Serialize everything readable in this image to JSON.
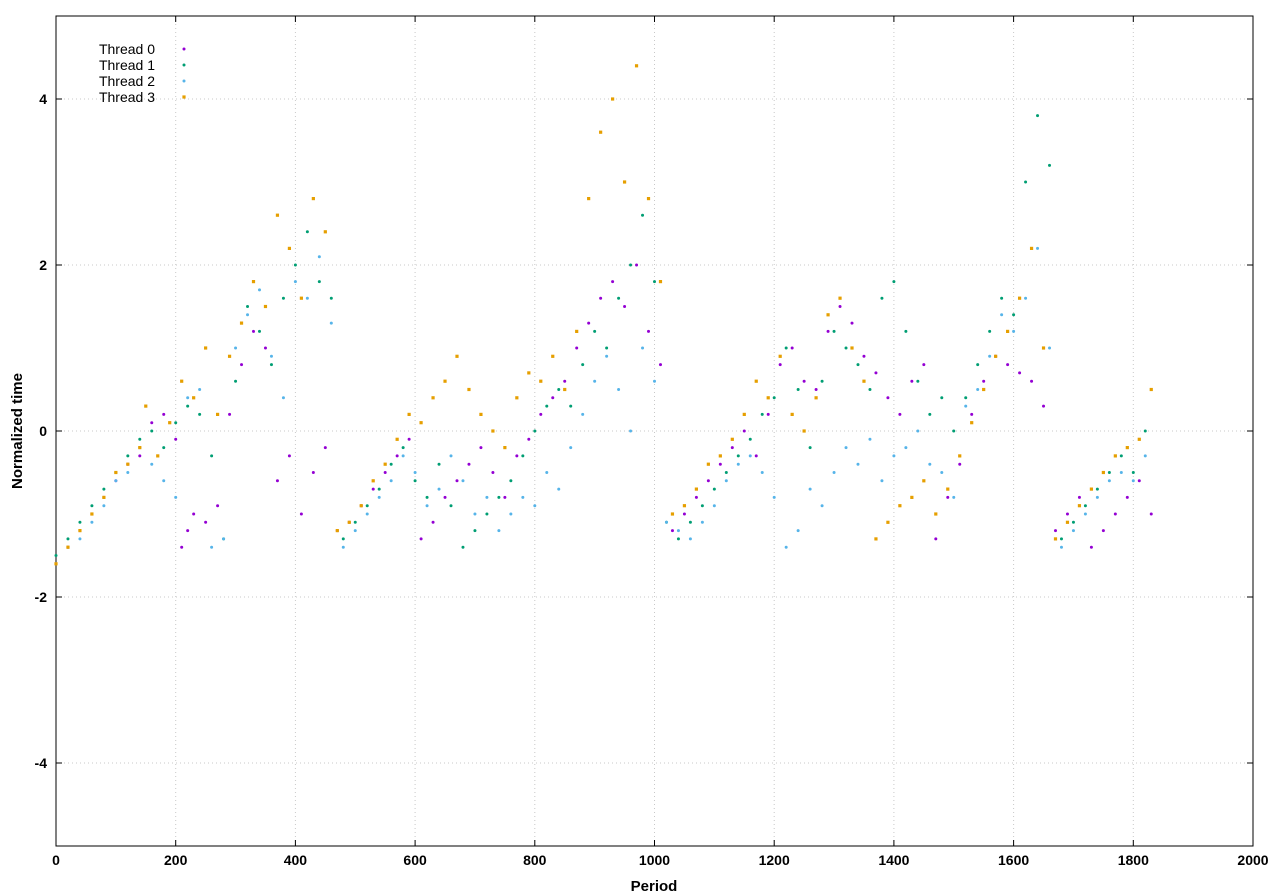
{
  "chart_data": {
    "type": "scatter",
    "title": "",
    "xlabel": "Period",
    "ylabel": "Normalized time",
    "xlim": [
      0,
      2000
    ],
    "ylim": [
      -5,
      5
    ],
    "xticks": [
      0,
      200,
      400,
      600,
      800,
      1000,
      1200,
      1400,
      1600,
      1800,
      2000
    ],
    "yticks": [
      -4,
      -2,
      0,
      2,
      4
    ],
    "grid": true,
    "legend_position": "top-left",
    "series": [
      {
        "name": "Thread 0",
        "color": "#9400d3",
        "marker": "dot",
        "x": [
          0,
          20,
          40,
          60,
          80,
          100,
          120,
          140,
          160,
          180,
          200,
          210,
          220,
          230,
          250,
          270,
          290,
          310,
          330,
          350,
          370,
          390,
          410,
          430,
          450,
          470,
          490,
          510,
          530,
          550,
          570,
          590,
          610,
          630,
          650,
          670,
          690,
          710,
          730,
          750,
          770,
          790,
          810,
          830,
          850,
          870,
          890,
          910,
          930,
          950,
          970,
          990,
          1010,
          1030,
          1050,
          1070,
          1090,
          1110,
          1130,
          1150,
          1170,
          1190,
          1210,
          1230,
          1250,
          1270,
          1290,
          1310,
          1330,
          1350,
          1370,
          1390,
          1410,
          1430,
          1450,
          1470,
          1490,
          1510,
          1530,
          1550,
          1570,
          1590,
          1610,
          1630,
          1650,
          1670,
          1690,
          1710,
          1730,
          1750,
          1770,
          1790,
          1810,
          1830
        ],
        "y": [
          -1.6,
          -1.4,
          -1.2,
          -1.0,
          -0.8,
          -0.6,
          -0.4,
          -0.3,
          0.1,
          0.2,
          -0.1,
          -1.4,
          -1.2,
          -1.0,
          -1.1,
          -0.9,
          0.2,
          0.8,
          1.2,
          1.0,
          -0.6,
          -0.3,
          -1.0,
          -0.5,
          -0.2,
          -1.2,
          -1.1,
          -0.9,
          -0.7,
          -0.5,
          -0.3,
          -0.1,
          -1.3,
          -1.1,
          -0.8,
          -0.6,
          -0.4,
          -0.2,
          -0.5,
          -0.8,
          -0.3,
          -0.1,
          0.2,
          0.4,
          0.6,
          1.0,
          1.3,
          1.6,
          1.8,
          1.5,
          2.0,
          1.2,
          0.8,
          -1.2,
          -1.0,
          -0.8,
          -0.6,
          -0.4,
          -0.2,
          0.0,
          -0.3,
          0.2,
          0.8,
          1.0,
          0.6,
          0.5,
          1.2,
          1.5,
          1.3,
          0.9,
          0.7,
          0.4,
          0.2,
          0.6,
          0.8,
          -1.3,
          -0.8,
          -0.4,
          0.2,
          0.6,
          0.9,
          0.8,
          0.7,
          0.6,
          0.3,
          -1.2,
          -1.0,
          -0.8,
          -1.4,
          -1.2,
          -1.0,
          -0.8,
          -0.6,
          -1.0
        ]
      },
      {
        "name": "Thread 1",
        "color": "#009e73",
        "marker": "dot",
        "x": [
          0,
          20,
          40,
          60,
          80,
          100,
          120,
          140,
          160,
          180,
          200,
          220,
          240,
          260,
          280,
          300,
          320,
          340,
          360,
          380,
          400,
          420,
          440,
          460,
          480,
          500,
          520,
          540,
          560,
          580,
          600,
          620,
          640,
          660,
          680,
          700,
          720,
          740,
          760,
          780,
          800,
          820,
          840,
          860,
          880,
          900,
          920,
          940,
          960,
          980,
          1000,
          1020,
          1040,
          1060,
          1080,
          1100,
          1120,
          1140,
          1160,
          1180,
          1200,
          1220,
          1240,
          1260,
          1280,
          1300,
          1320,
          1340,
          1360,
          1380,
          1400,
          1420,
          1440,
          1460,
          1480,
          1500,
          1520,
          1540,
          1560,
          1580,
          1600,
          1620,
          1640,
          1660,
          1680,
          1700,
          1720,
          1740,
          1760,
          1780,
          1800,
          1820
        ],
        "y": [
          -1.5,
          -1.3,
          -1.1,
          -0.9,
          -0.7,
          -0.5,
          -0.3,
          -0.1,
          0.0,
          -0.2,
          0.1,
          0.3,
          0.2,
          -0.3,
          -1.3,
          0.6,
          1.5,
          1.2,
          0.8,
          1.6,
          2.0,
          2.4,
          1.8,
          1.6,
          -1.3,
          -1.1,
          -0.9,
          -0.7,
          -0.4,
          -0.2,
          -0.6,
          -0.8,
          -0.4,
          -0.9,
          -1.4,
          -1.2,
          -1.0,
          -0.8,
          -0.6,
          -0.3,
          0.0,
          0.3,
          0.5,
          0.3,
          0.8,
          1.2,
          1.0,
          1.6,
          2.0,
          2.6,
          1.8,
          -1.1,
          -1.3,
          -1.1,
          -0.9,
          -0.7,
          -0.5,
          -0.3,
          -0.1,
          0.2,
          0.4,
          1.0,
          0.5,
          -0.2,
          0.6,
          1.2,
          1.0,
          0.8,
          0.5,
          1.6,
          1.8,
          1.2,
          0.6,
          0.2,
          0.4,
          0.0,
          0.4,
          0.8,
          1.2,
          1.6,
          1.4,
          3.0,
          3.8,
          3.2,
          -1.3,
          -1.1,
          -0.9,
          -0.7,
          -0.5,
          -0.3,
          -0.5,
          0.0
        ]
      },
      {
        "name": "Thread 2",
        "color": "#56b4e9",
        "marker": "dot",
        "x": [
          0,
          20,
          40,
          60,
          80,
          100,
          120,
          140,
          160,
          180,
          200,
          220,
          240,
          260,
          280,
          300,
          320,
          340,
          360,
          380,
          400,
          420,
          440,
          460,
          480,
          500,
          520,
          540,
          560,
          580,
          600,
          620,
          640,
          660,
          680,
          700,
          720,
          740,
          760,
          780,
          800,
          820,
          840,
          860,
          880,
          900,
          920,
          940,
          960,
          980,
          1000,
          1020,
          1040,
          1060,
          1080,
          1100,
          1120,
          1140,
          1160,
          1180,
          1200,
          1220,
          1240,
          1260,
          1280,
          1300,
          1320,
          1340,
          1360,
          1380,
          1400,
          1420,
          1440,
          1460,
          1480,
          1500,
          1520,
          1540,
          1560,
          1580,
          1600,
          1620,
          1640,
          1660,
          1680,
          1700,
          1720,
          1740,
          1760,
          1780,
          1800,
          1820
        ],
        "y": [
          -1.6,
          -1.4,
          -1.3,
          -1.1,
          -0.9,
          -0.6,
          -0.5,
          -0.2,
          -0.4,
          -0.6,
          -0.8,
          0.4,
          0.5,
          -1.4,
          -1.3,
          1.0,
          1.4,
          1.7,
          0.9,
          0.4,
          1.8,
          1.6,
          2.1,
          1.3,
          -1.4,
          -1.2,
          -1.0,
          -0.8,
          -0.6,
          -0.3,
          -0.5,
          -0.9,
          -0.7,
          -0.3,
          -0.6,
          -1.0,
          -0.8,
          -1.2,
          -1.0,
          -0.8,
          -0.9,
          -0.5,
          -0.7,
          -0.2,
          0.2,
          0.6,
          0.9,
          0.5,
          0.0,
          1.0,
          0.6,
          -1.1,
          -1.2,
          -1.3,
          -1.1,
          -0.9,
          -0.6,
          -0.4,
          -0.3,
          -0.5,
          -0.8,
          -1.4,
          -1.2,
          -0.7,
          -0.9,
          -0.5,
          -0.2,
          -0.4,
          -0.1,
          -0.6,
          -0.3,
          -0.2,
          0.0,
          -0.4,
          -0.5,
          -0.8,
          0.3,
          0.5,
          0.9,
          1.4,
          1.2,
          1.6,
          2.2,
          1.0,
          -1.4,
          -1.2,
          -1.0,
          -0.8,
          -0.6,
          -0.5,
          -0.6,
          -0.3
        ]
      },
      {
        "name": "Thread 3",
        "color": "#e69f00",
        "marker": "square",
        "x": [
          0,
          20,
          40,
          60,
          80,
          100,
          120,
          140,
          150,
          170,
          190,
          210,
          230,
          250,
          270,
          290,
          310,
          330,
          350,
          370,
          390,
          410,
          430,
          450,
          470,
          490,
          510,
          530,
          550,
          570,
          590,
          610,
          630,
          650,
          670,
          690,
          710,
          730,
          750,
          770,
          790,
          810,
          830,
          850,
          870,
          890,
          910,
          930,
          950,
          970,
          990,
          1010,
          1030,
          1050,
          1070,
          1090,
          1110,
          1130,
          1150,
          1170,
          1190,
          1210,
          1230,
          1250,
          1270,
          1290,
          1310,
          1330,
          1350,
          1370,
          1390,
          1410,
          1430,
          1450,
          1470,
          1490,
          1510,
          1530,
          1550,
          1570,
          1590,
          1610,
          1630,
          1650,
          1670,
          1690,
          1710,
          1730,
          1750,
          1770,
          1790,
          1810,
          1830
        ],
        "y": [
          -1.6,
          -1.4,
          -1.2,
          -1.0,
          -0.8,
          -0.5,
          -0.4,
          -0.2,
          0.3,
          -0.3,
          0.1,
          0.6,
          0.4,
          1.0,
          0.2,
          0.9,
          1.3,
          1.8,
          1.5,
          2.6,
          2.2,
          1.6,
          2.8,
          2.4,
          -1.2,
          -1.1,
          -0.9,
          -0.6,
          -0.4,
          -0.1,
          0.2,
          0.1,
          0.4,
          0.6,
          0.9,
          0.5,
          0.2,
          0.0,
          -0.2,
          0.4,
          0.7,
          0.6,
          0.9,
          0.5,
          1.2,
          2.8,
          3.6,
          4.0,
          3.0,
          4.4,
          2.8,
          1.8,
          -1.0,
          -0.9,
          -0.7,
          -0.4,
          -0.3,
          -0.1,
          0.2,
          0.6,
          0.4,
          0.9,
          0.2,
          0.0,
          0.4,
          1.4,
          1.6,
          1.0,
          0.6,
          -1.3,
          -1.1,
          -0.9,
          -0.8,
          -0.6,
          -1.0,
          -0.7,
          -0.3,
          0.1,
          0.5,
          0.9,
          1.2,
          1.6,
          2.2,
          1.0,
          -1.3,
          -1.1,
          -0.9,
          -0.7,
          -0.5,
          -0.3,
          -0.2,
          -0.1,
          0.5
        ]
      }
    ]
  }
}
